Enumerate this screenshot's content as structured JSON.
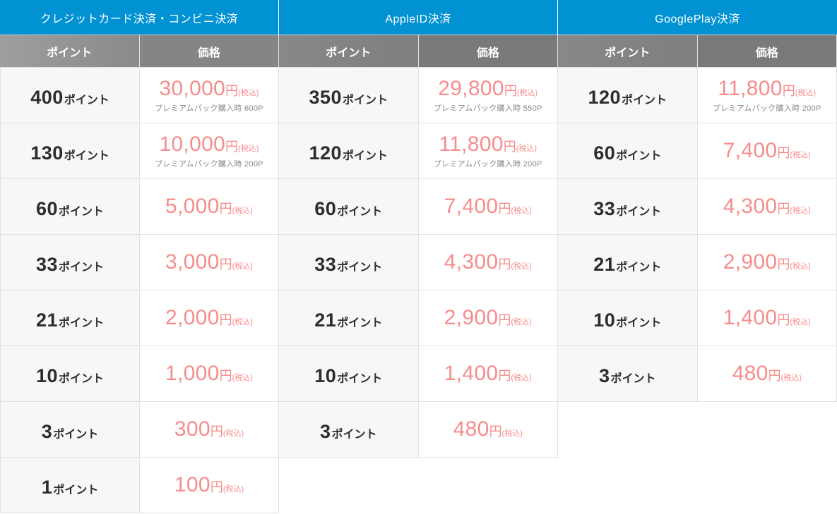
{
  "colors": {
    "group_header_bg": "#0092d2",
    "sub_header_bg": "#858585",
    "price_color": "#f78c8c",
    "point_color": "#2d2d2d",
    "point_cell_bg": "#f8f7f5"
  },
  "labels": {
    "point_header": "ポイント",
    "price_header": "価格",
    "point_unit": "ポイント",
    "yen": "円",
    "tax": "(税込)"
  },
  "groups": [
    {
      "title": "クレジットカード決済・コンビニ決済",
      "rows": [
        {
          "points": "400",
          "price": "30,000",
          "note": "プレミアムパック購入時 600P"
        },
        {
          "points": "130",
          "price": "10,000",
          "note": "プレミアムパック購入時 200P"
        },
        {
          "points": "60",
          "price": "5,000"
        },
        {
          "points": "33",
          "price": "3,000"
        },
        {
          "points": "21",
          "price": "2,000"
        },
        {
          "points": "10",
          "price": "1,000"
        },
        {
          "points": "3",
          "price": "300"
        },
        {
          "points": "1",
          "price": "100"
        }
      ]
    },
    {
      "title": "AppleID決済",
      "rows": [
        {
          "points": "350",
          "price": "29,800",
          "note": "プレミアムパック購入時 550P"
        },
        {
          "points": "120",
          "price": "11,800",
          "note": "プレミアムパック購入時 200P"
        },
        {
          "points": "60",
          "price": "7,400"
        },
        {
          "points": "33",
          "price": "4,300"
        },
        {
          "points": "21",
          "price": "2,900"
        },
        {
          "points": "10",
          "price": "1,400"
        },
        {
          "points": "3",
          "price": "480"
        }
      ]
    },
    {
      "title": "GooglePlay決済",
      "rows": [
        {
          "points": "120",
          "price": "11,800",
          "note": "プレミアムパック購入時 200P"
        },
        {
          "points": "60",
          "price": "7,400"
        },
        {
          "points": "33",
          "price": "4,300"
        },
        {
          "points": "21",
          "price": "2,900"
        },
        {
          "points": "10",
          "price": "1,400"
        },
        {
          "points": "3",
          "price": "480"
        }
      ]
    }
  ]
}
